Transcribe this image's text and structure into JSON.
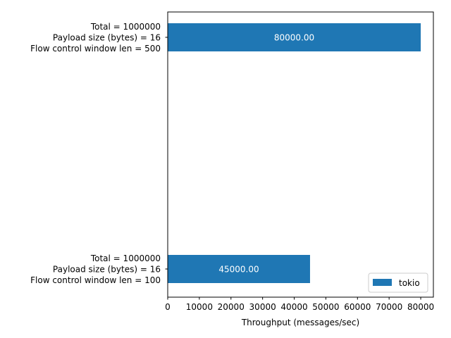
{
  "chart_data": {
    "type": "bar",
    "orientation": "horizontal",
    "title": "",
    "xlabel": "Throughput (messages/sec)",
    "ylabel": "",
    "xlim": [
      0,
      84000
    ],
    "x_ticks": [
      0,
      10000,
      20000,
      30000,
      40000,
      50000,
      60000,
      70000,
      80000
    ],
    "x_tick_labels": [
      "0",
      "10000",
      "20000",
      "30000",
      "40000",
      "50000",
      "60000",
      "70000",
      "80000"
    ],
    "grid": false,
    "legend_position": "lower-right",
    "series": [
      {
        "name": "tokio",
        "color": "#1f77b4",
        "values": [
          80000,
          45000
        ],
        "value_labels": [
          "80000.00",
          "45000.00"
        ]
      }
    ],
    "categories": [
      [
        "Total = 1000000",
        "Payload size (bytes) = 16",
        "Flow control window len = 500"
      ],
      [
        "Total = 1000000",
        "Payload size (bytes) = 16",
        "Flow control window len = 100"
      ]
    ]
  }
}
